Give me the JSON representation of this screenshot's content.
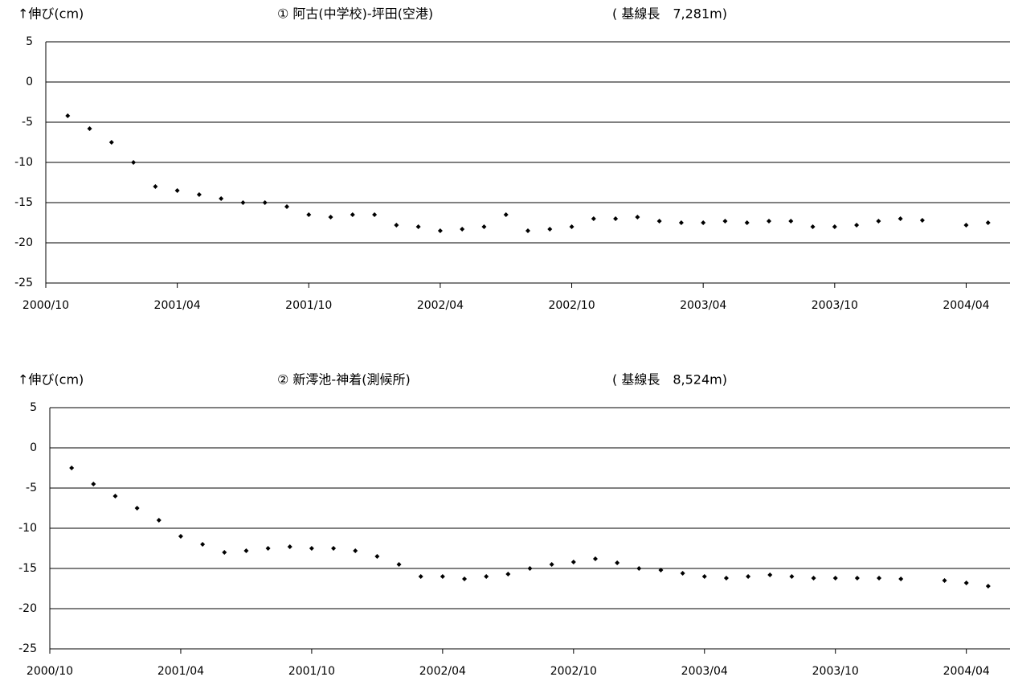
{
  "chart_data": [
    {
      "type": "scatter",
      "y_label": "↑伸び(cm)",
      "title": "① 阿古(中学校)-坪田(空港)",
      "subtitle": "( 基線長　7,281m)",
      "color": "#000000",
      "grid": true,
      "x": [
        "2000/11",
        "2000/12",
        "2001/01",
        "2001/02",
        "2001/03",
        "2001/04",
        "2001/05",
        "2001/06",
        "2001/07",
        "2001/08",
        "2001/09",
        "2001/10",
        "2001/11",
        "2001/12",
        "2002/01",
        "2002/02",
        "2002/03",
        "2002/04",
        "2002/05",
        "2002/06",
        "2002/07",
        "2002/08",
        "2002/09",
        "2002/10",
        "2002/11",
        "2002/12",
        "2003/01",
        "2003/02",
        "2003/03",
        "2003/04",
        "2003/05",
        "2003/06",
        "2003/07",
        "2003/08",
        "2003/09",
        "2003/10",
        "2003/11",
        "2003/12",
        "2004/01",
        "2004/02",
        "2004/03",
        "2004/04",
        "2004/05"
      ],
      "values": [
        -4.2,
        -5.8,
        -7.5,
        -10,
        -13,
        -13.5,
        -14,
        -14.5,
        -15,
        -15,
        -15.5,
        -16.5,
        -16.8,
        -16.5,
        -16.5,
        -17.8,
        -18,
        -18.5,
        -18.3,
        -18,
        -16.5,
        -18.5,
        -18.3,
        -18,
        -17,
        -17,
        -16.8,
        -17.3,
        -17.5,
        -17.5,
        -17.3,
        -17.5,
        -17.3,
        -17.3,
        -18,
        -18,
        -17.8,
        -17.3,
        -17,
        -17.2,
        null,
        -17.8,
        -17.5
      ],
      "xlim": [
        "2000/10",
        "2004/06"
      ],
      "xticks": [
        "2000/10",
        "2001/04",
        "2001/10",
        "2002/04",
        "2002/10",
        "2003/04",
        "2003/10",
        "2004/04"
      ],
      "ylim": [
        -25,
        5
      ],
      "yticks": [
        -25,
        -20,
        -15,
        -10,
        -5,
        0,
        5
      ]
    },
    {
      "type": "scatter",
      "y_label": "↑伸び(cm)",
      "title": "② 新澪池-神着(測候所)",
      "subtitle": "( 基線長　8,524m)",
      "color": "#000000",
      "grid": true,
      "x": [
        "2000/11",
        "2000/12",
        "2001/01",
        "2001/02",
        "2001/03",
        "2001/04",
        "2001/05",
        "2001/06",
        "2001/07",
        "2001/08",
        "2001/09",
        "2001/10",
        "2001/11",
        "2001/12",
        "2002/01",
        "2002/02",
        "2002/03",
        "2002/04",
        "2002/05",
        "2002/06",
        "2002/07",
        "2002/08",
        "2002/09",
        "2002/10",
        "2002/11",
        "2002/12",
        "2003/01",
        "2003/02",
        "2003/03",
        "2003/04",
        "2003/05",
        "2003/06",
        "2003/07",
        "2003/08",
        "2003/09",
        "2003/10",
        "2003/11",
        "2003/12",
        "2004/01",
        "2004/02",
        "2004/03",
        "2004/04",
        "2004/05"
      ],
      "values": [
        -2.5,
        -4.5,
        -6,
        -7.5,
        -9,
        -11,
        -12,
        -13,
        -12.8,
        -12.5,
        -12.3,
        -12.5,
        -12.5,
        -12.8,
        -13.5,
        -14.5,
        -16,
        -16,
        -16.3,
        -16,
        -15.7,
        -15,
        -14.5,
        -14.2,
        -13.8,
        -14.3,
        -15,
        -15.2,
        -15.6,
        -16,
        -16.2,
        -16,
        -15.8,
        -16,
        -16.2,
        -16.2,
        -16.2,
        -16.2,
        -16.3,
        null,
        -16.5,
        -16.8,
        -17.2
      ],
      "xlim": [
        "2000/10",
        "2004/06"
      ],
      "xticks": [
        "2000/10",
        "2001/04",
        "2001/10",
        "2002/04",
        "2002/10",
        "2003/04",
        "2003/10",
        "2004/04"
      ],
      "ylim": [
        -25,
        5
      ],
      "yticks": [
        -25,
        -20,
        -15,
        -10,
        -5,
        0,
        5
      ]
    }
  ]
}
